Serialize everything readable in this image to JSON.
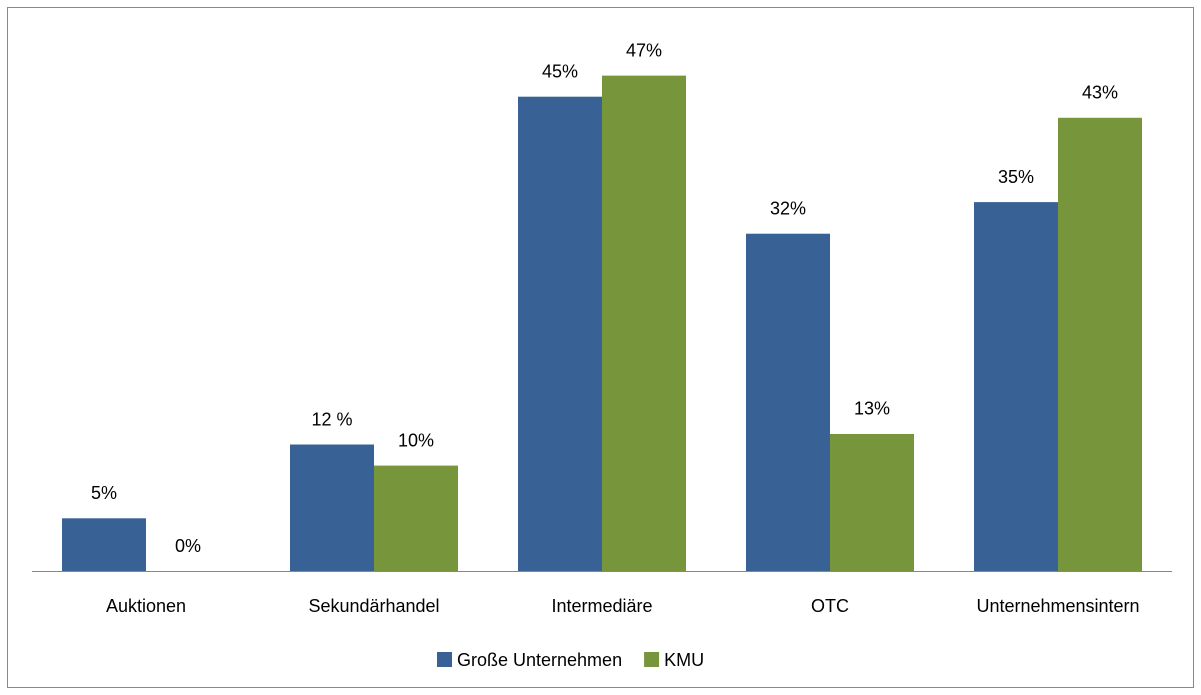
{
  "chart_data": {
    "type": "bar",
    "categories": [
      "Auktionen",
      "Sekundärhandel",
      "Intermediäre",
      "OTC",
      "Unternehmensintern"
    ],
    "series": [
      {
        "name": "Große Unternehmen",
        "color": "#386195",
        "values": [
          5,
          12,
          45,
          32,
          35
        ],
        "value_labels": [
          "5%",
          "12 %",
          "45%",
          "32%",
          "35%"
        ]
      },
      {
        "name": "KMU",
        "color": "#77963b",
        "values": [
          0,
          10,
          47,
          13,
          43
        ],
        "value_labels": [
          "0%",
          "10%",
          "47%",
          "13%",
          "43%"
        ]
      }
    ],
    "ylim": [
      0,
      50
    ],
    "legend": "bottom"
  }
}
